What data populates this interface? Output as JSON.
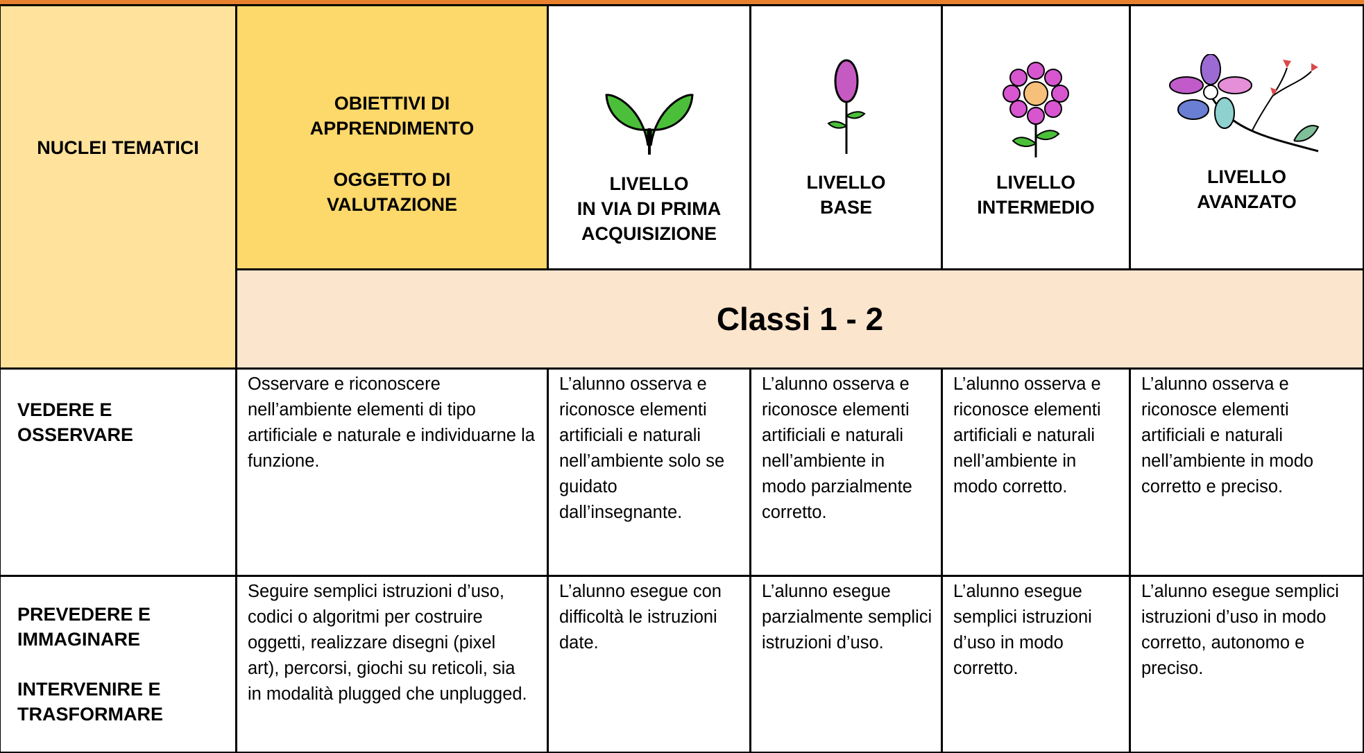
{
  "header": {
    "nuclei": "NUCLEI TEMATICI",
    "obiettivi": [
      "OBIETTIVI DI",
      "APPRENDIMENTO"
    ],
    "oggetto": [
      "OGGETTO DI",
      "VALUTAZIONE"
    ],
    "levels": [
      [
        "LIVELLO",
        "IN VIA DI PRIMA",
        "ACQUISIZIONE"
      ],
      [
        "LIVELLO",
        "BASE"
      ],
      [
        "LIVELLO",
        "INTERMEDIO"
      ],
      [
        "LIVELLO",
        "AVANZATO"
      ]
    ],
    "classi": "Classi 1 - 2"
  },
  "rows": [
    {
      "nucleo": [
        "VEDERE E OSSERVARE"
      ],
      "obiettivo": "Osservare e riconoscere nell’ambiente elementi di tipo artificiale e naturale e individuarne la funzione.",
      "descrittori": [
        "L’alunno osserva e riconosce elementi artificiali e naturali nell’ambiente solo se guidato dall’insegnante.",
        "L’alunno osserva e riconosce elementi artificiali e naturali nell’ambiente in modo parzialmente corretto.",
        "L’alunno osserva e riconosce elementi artificiali e naturali nell’ambiente in modo corretto.",
        "L’alunno osserva  e riconosce elementi artificiali e naturali nell’ambiente in modo corretto e preciso."
      ]
    },
    {
      "nucleo": [
        "PREVEDERE E IMMAGINARE",
        "INTERVENIRE E TRASFORMARE"
      ],
      "obiettivo": "Seguire semplici istruzioni d’uso, codici o algoritmi  per costruire oggetti, realizzare disegni (pixel art), percorsi, giochi su reticoli, sia in modalità plugged che unplugged.",
      "descrittori": [
        "L’alunno esegue con difficoltà le istruzioni date.",
        "L’alunno esegue parzialmente semplici istruzioni d’uso.",
        "L’alunno esegue semplici istruzioni d’uso in modo corretto.",
        "L’alunno esegue semplici istruzioni d’uso in modo corretto, autonomo e preciso."
      ]
    }
  ]
}
